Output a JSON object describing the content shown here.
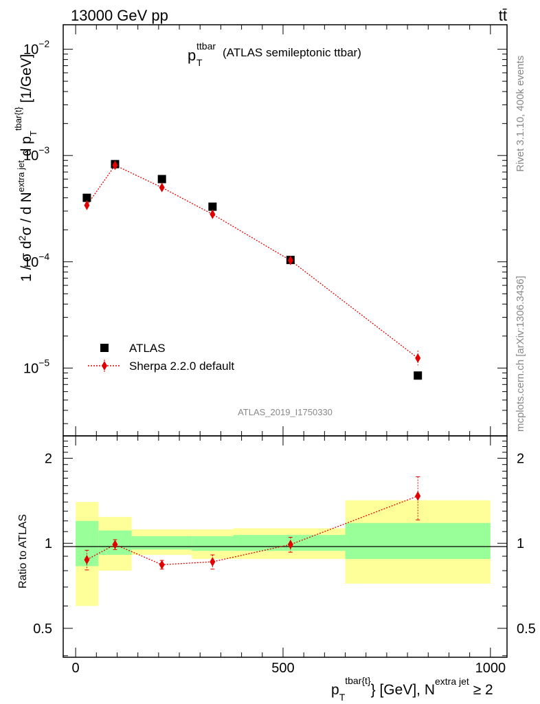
{
  "header": {
    "energy_label": "13000 GeV pp",
    "process_label": "tt̄",
    "plot_title_main": "p",
    "plot_title_sub": "T",
    "plot_title_sup": "ttbar",
    "plot_title_rest": "(ATLAS semileptonic ttbar)",
    "analysis_id": "ATLAS_2019_I1750330",
    "side_label_top": "Rivet 3.1.10,  400k events",
    "side_label_bottom": "mcplots.cern.ch [arXiv:1306.3436]"
  },
  "chart_data": [
    {
      "type": "scatter",
      "panel": "main",
      "yscale": "log",
      "xlim": [
        -30,
        1040
      ],
      "ylim": [
        2.3e-06,
        0.017
      ],
      "ylabel": "1 / σ d²σ / d N^{extra jet} d p_T^{tbar{t}} [1/GeV]",
      "yticks": [
        {
          "value": 1e-05,
          "base": "10",
          "exp": "−5"
        },
        {
          "value": 0.0001,
          "base": "10",
          "exp": "−4"
        },
        {
          "value": 0.001,
          "base": "10",
          "exp": "−3"
        },
        {
          "value": 0.01,
          "base": "10",
          "exp": "−2"
        }
      ],
      "legend_position": "lower-left",
      "series": [
        {
          "name": "ATLAS",
          "color": "#000000",
          "marker": "square",
          "x": [
            27,
            95,
            208,
            330,
            518,
            825
          ],
          "y": [
            0.0004,
            0.00083,
            0.0006,
            0.00033,
            0.000104,
            8.5e-06
          ]
        },
        {
          "name": "Sherpa 2.2.0 default",
          "color": "#e00000",
          "marker": "diamond",
          "line": "dotted",
          "x": [
            27,
            95,
            208,
            330,
            518,
            825
          ],
          "y": [
            0.00034,
            0.00081,
            0.0005,
            0.00028,
            0.000103,
            1.24e-05
          ],
          "yerr_low": [
            4e-05,
            5e-05,
            3e-05,
            2e-05,
            6e-06,
            1.8e-06
          ],
          "yerr_high": [
            4e-05,
            5e-05,
            3e-05,
            2e-05,
            6e-06,
            2.2e-06
          ]
        }
      ]
    },
    {
      "type": "scatter",
      "panel": "ratio",
      "yscale": "log",
      "xlim": [
        -30,
        1040
      ],
      "ylim": [
        0.395,
        2.4
      ],
      "ylabel": "Ratio to ATLAS",
      "xlabel": "p_T^{tbar{t}} [GeV], N^{extra jet} ≥ 2",
      "yticks": [
        0.5,
        1,
        2
      ],
      "xticks": [
        0,
        500,
        1000
      ],
      "bins": [
        {
          "lo": 0,
          "hi": 55,
          "stat_lo": 0.83,
          "stat_hi": 1.2,
          "tot_lo": 0.6,
          "tot_hi": 1.4
        },
        {
          "lo": 55,
          "hi": 135,
          "stat_lo": 0.91,
          "stat_hi": 1.11,
          "tot_lo": 0.8,
          "tot_hi": 1.24
        },
        {
          "lo": 135,
          "hi": 280,
          "stat_lo": 0.95,
          "stat_hi": 1.06,
          "tot_lo": 0.91,
          "tot_hi": 1.12
        },
        {
          "lo": 280,
          "hi": 380,
          "stat_lo": 0.94,
          "stat_hi": 1.06,
          "tot_lo": 0.88,
          "tot_hi": 1.12
        },
        {
          "lo": 380,
          "hi": 650,
          "stat_lo": 0.94,
          "stat_hi": 1.07,
          "tot_lo": 0.88,
          "tot_hi": 1.13
        },
        {
          "lo": 650,
          "hi": 1000,
          "stat_lo": 0.88,
          "stat_hi": 1.18,
          "tot_lo": 0.72,
          "tot_hi": 1.42
        }
      ],
      "series": [
        {
          "name": "Sherpa 2.2.0 default",
          "color": "#e00000",
          "x": [
            27,
            95,
            208,
            330,
            518,
            825
          ],
          "y": [
            0.875,
            0.99,
            0.84,
            0.86,
            0.99,
            1.47
          ],
          "yerr_low": [
            0.07,
            0.04,
            0.03,
            0.05,
            0.06,
            0.26
          ],
          "yerr_high": [
            0.07,
            0.04,
            0.03,
            0.05,
            0.06,
            0.25
          ]
        }
      ],
      "colors": {
        "stat_band": "#99ff99",
        "total_band": "#ffff99"
      }
    }
  ]
}
